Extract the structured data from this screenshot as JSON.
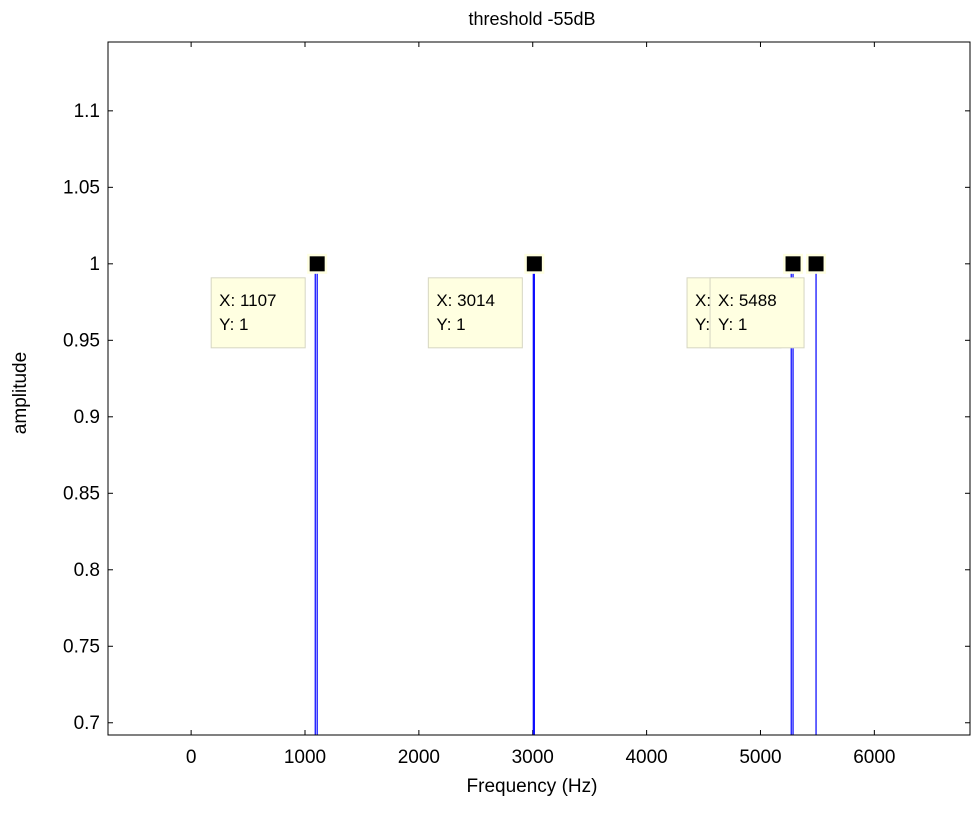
{
  "chart_data": {
    "type": "line",
    "title": "threshold -55dB",
    "xlabel": "Frequency (Hz)",
    "ylabel": "amplitude",
    "xlim": [
      -730,
      6840
    ],
    "ylim": [
      0.692,
      1.145
    ],
    "xticks": [
      0,
      1000,
      2000,
      3000,
      4000,
      5000,
      6000
    ],
    "xtick_labels": [
      "0",
      "1000",
      "2000",
      "3000",
      "4000",
      "5000",
      "6000"
    ],
    "yticks": [
      0.7,
      0.75,
      0.8,
      0.85,
      0.9,
      0.95,
      1,
      1.05,
      1.1
    ],
    "ytick_labels": [
      "0.7",
      "0.75",
      "0.8",
      "0.85",
      "0.9",
      "0.95",
      "1",
      "1.05",
      "1.1"
    ],
    "grid": false,
    "series": [
      {
        "type": "stem",
        "color": "#0000ff",
        "points": [
          {
            "x": 1090,
            "y": 1
          },
          {
            "x": 1107,
            "y": 1
          },
          {
            "x": 3005,
            "y": 1
          },
          {
            "x": 3014,
            "y": 1
          },
          {
            "x": 5270,
            "y": 1
          },
          {
            "x": 5286,
            "y": 1
          },
          {
            "x": 5488,
            "y": 1
          }
        ]
      }
    ],
    "datatips": [
      {
        "x": 1107,
        "y": 1,
        "x_label": "X: 1107",
        "y_label": "Y: 1"
      },
      {
        "x": 3014,
        "y": 1,
        "x_label": "X: 3014",
        "y_label": "Y: 1"
      },
      {
        "x": 5286,
        "y": 1,
        "x_label": "X: 5286",
        "y_label": "Y: 1"
      },
      {
        "x": 5488,
        "y": 1,
        "x_label": "X: 5488",
        "y_label": "Y: 1"
      }
    ],
    "datatip_fill": "#ffffe1"
  }
}
